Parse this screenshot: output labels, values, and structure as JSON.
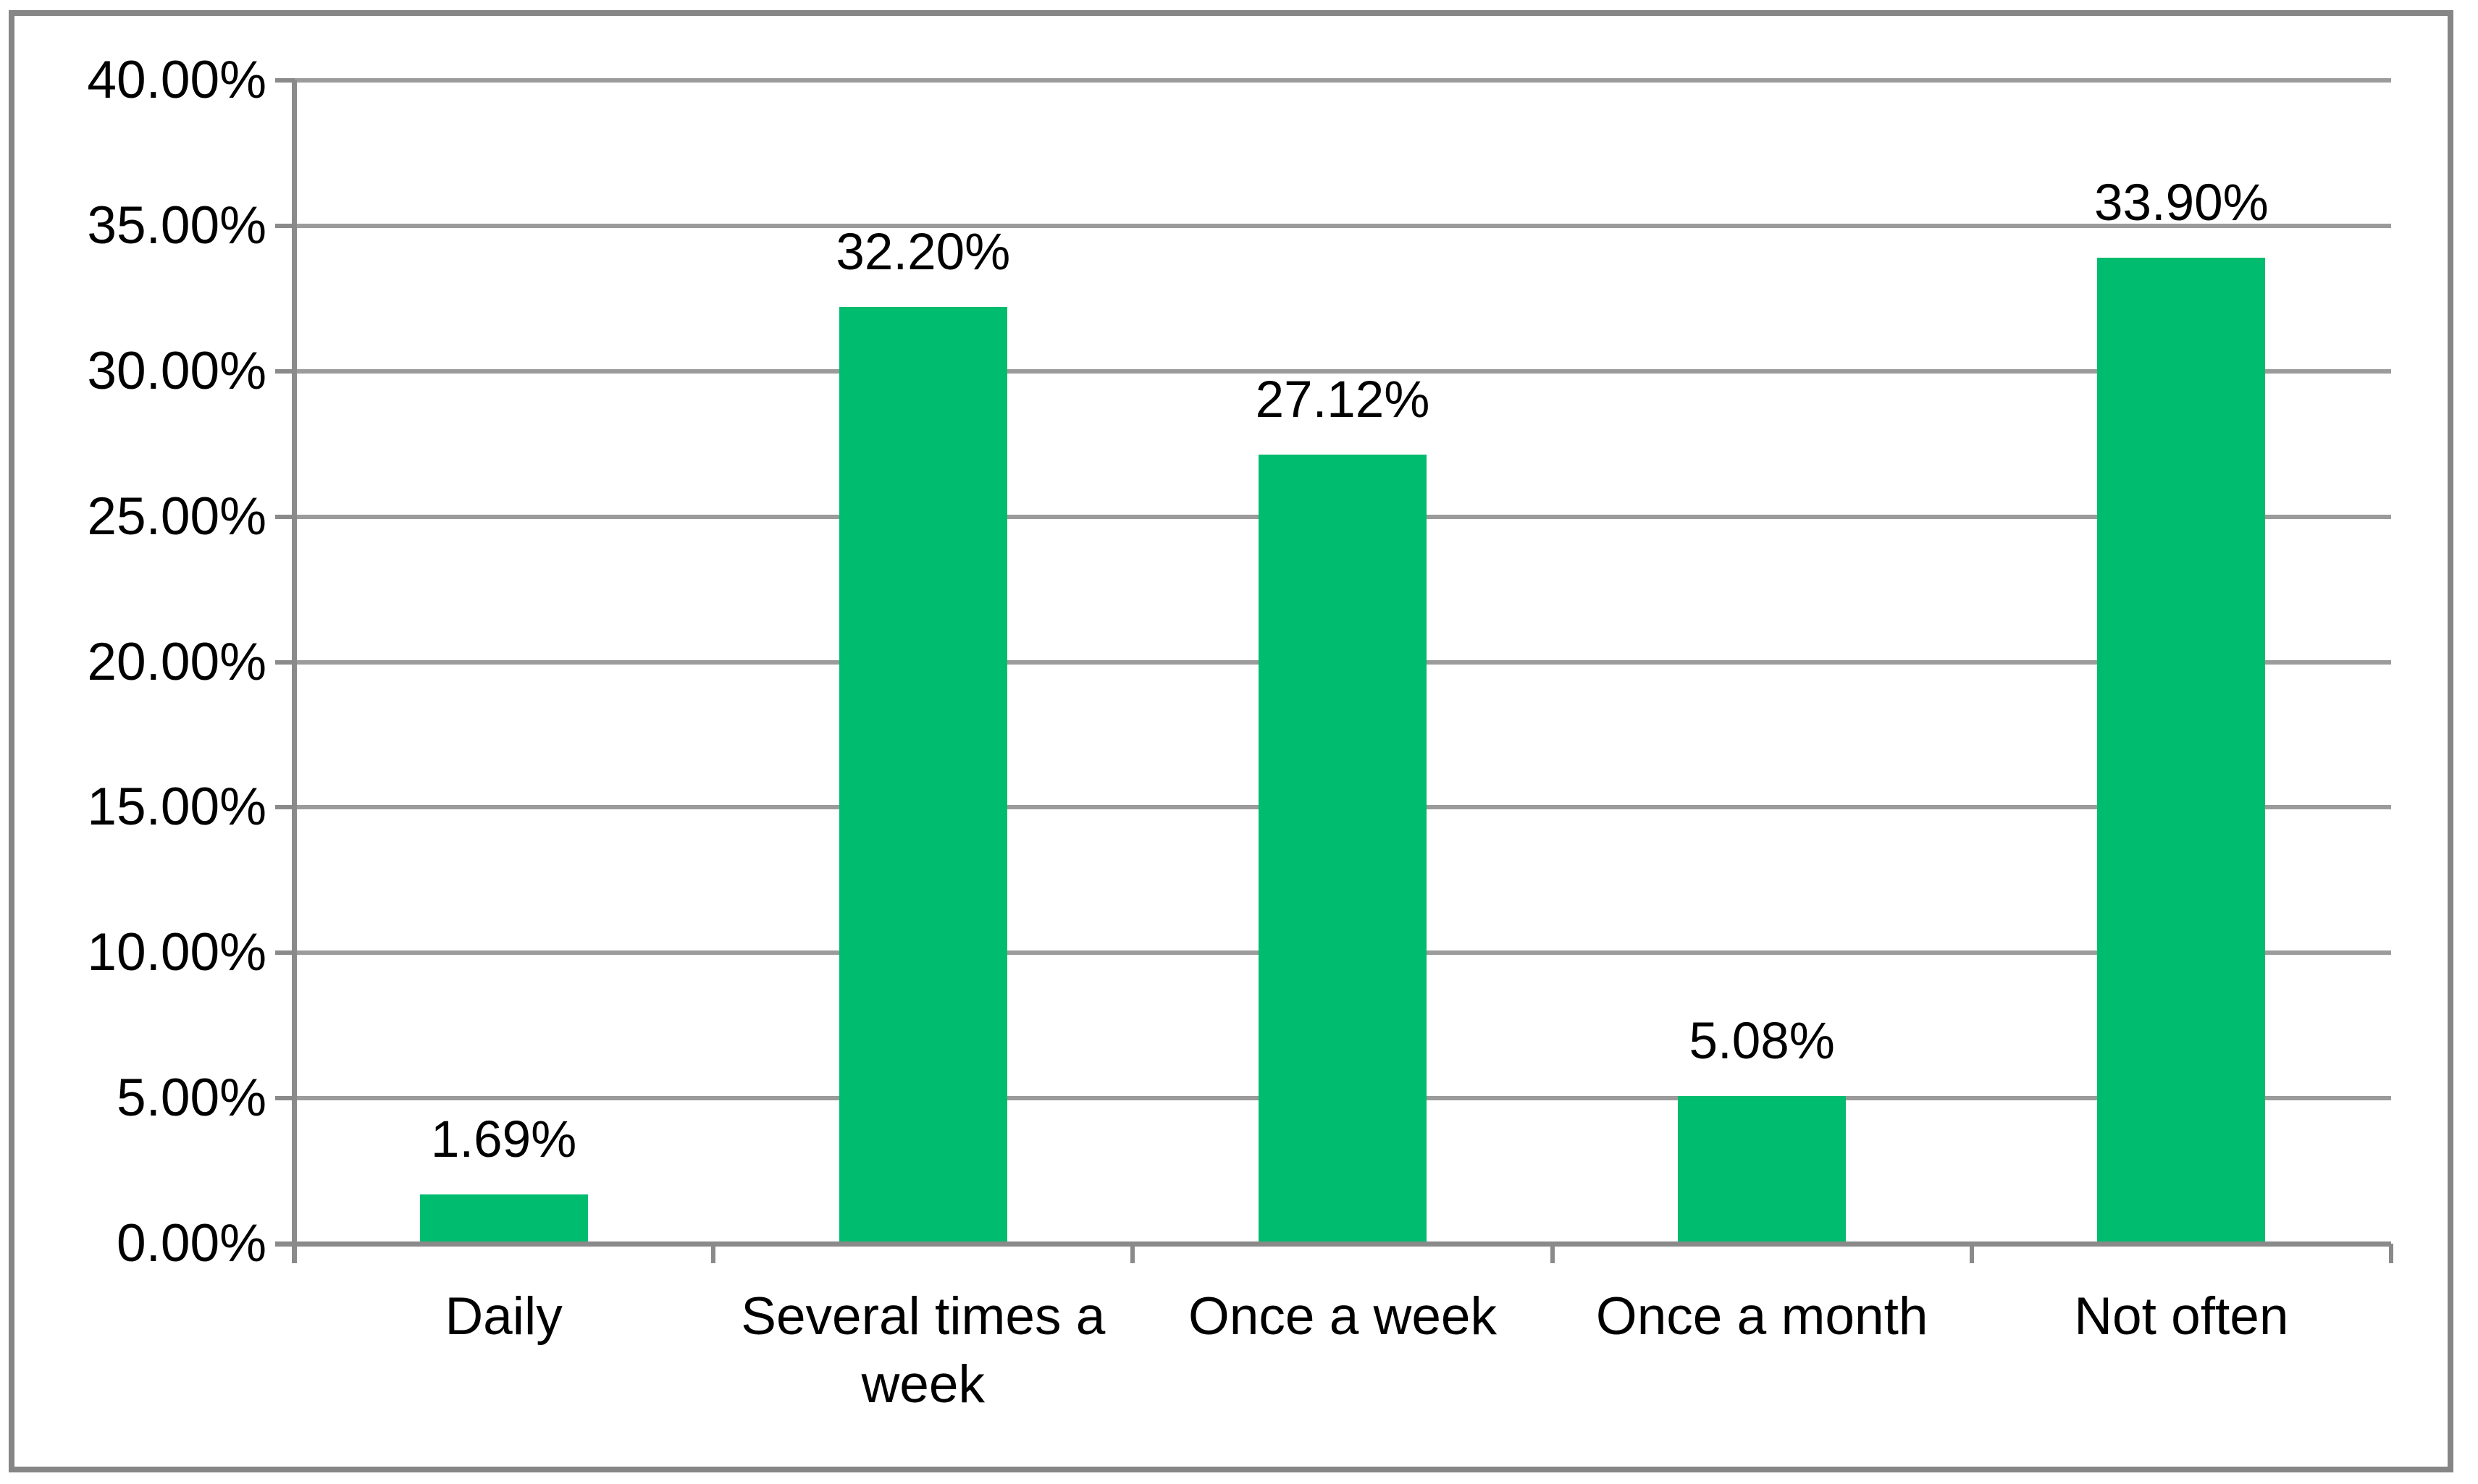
{
  "chart_data": {
    "type": "bar",
    "title": "",
    "xlabel": "",
    "ylabel": "",
    "categories": [
      "Daily",
      "Several times a week",
      "Once a week",
      "Once a month",
      "Not often"
    ],
    "values": [
      1.69,
      32.2,
      27.12,
      5.08,
      33.9
    ],
    "data_labels": [
      "1.69%",
      "32.20%",
      "27.12%",
      "5.08%",
      "33.90%"
    ],
    "y_tick_labels": [
      "40.00%",
      "35.00%",
      "30.00%",
      "25.00%",
      "20.00%",
      "15.00%",
      "10.00%",
      "5.00%",
      "0.00%"
    ],
    "ylim": [
      0,
      40
    ],
    "y_step": 5,
    "grid": true,
    "legend_position": "none",
    "colors": {
      "bar": "#00BC6E",
      "gridline": "#9B9B9B",
      "axis": "#8A8A8A",
      "tick": "#8A8A8A",
      "frame": "#868686",
      "text": "#000000",
      "background": "#FFFFFF"
    }
  }
}
